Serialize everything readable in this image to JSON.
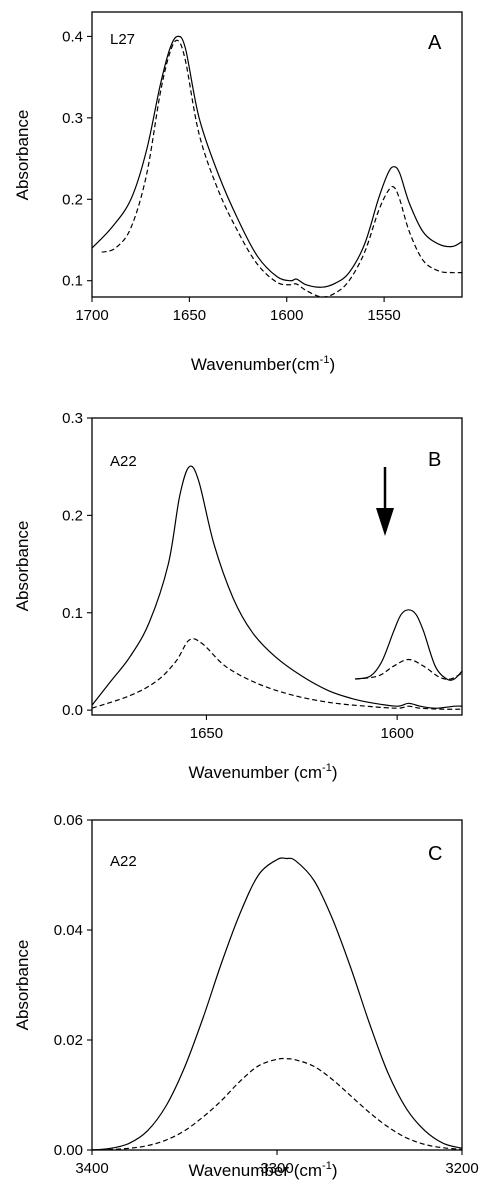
{
  "chart_data": [
    {
      "type": "line",
      "panel_letter": "A",
      "sample_label": "L27",
      "xlabel": "Wavenumber(cm",
      "xlabel_sup": "-1",
      "xlabel_close": ")",
      "ylabel": "Absorbance",
      "xlim": [
        1700,
        1510
      ],
      "ylim": [
        0.08,
        0.43
      ],
      "xticks": [
        1700,
        1650,
        1600,
        1550
      ],
      "yticks": [
        0.1,
        0.2,
        0.3,
        0.4
      ],
      "xticklabels": [
        "1700",
        "1650",
        "1600",
        "1550"
      ],
      "yticklabels": [
        "0.1",
        "0.2",
        "0.3",
        "0.4"
      ],
      "series": [
        {
          "style": "solid",
          "x": [
            1700,
            1690,
            1680,
            1672,
            1665,
            1660,
            1656,
            1652,
            1645,
            1635,
            1625,
            1615,
            1605,
            1598,
            1595,
            1590,
            1582,
            1575,
            1568,
            1560,
            1553,
            1548,
            1545,
            1542,
            1537,
            1530,
            1522,
            1515,
            1510
          ],
          "y": [
            0.14,
            0.165,
            0.2,
            0.26,
            0.34,
            0.385,
            0.4,
            0.385,
            0.3,
            0.23,
            0.175,
            0.13,
            0.105,
            0.1,
            0.102,
            0.095,
            0.092,
            0.097,
            0.11,
            0.145,
            0.2,
            0.232,
            0.24,
            0.232,
            0.195,
            0.16,
            0.145,
            0.142,
            0.148
          ]
        },
        {
          "style": "dashed",
          "x": [
            1695,
            1688,
            1680,
            1672,
            1665,
            1660,
            1656,
            1652,
            1645,
            1635,
            1625,
            1615,
            1605,
            1598,
            1595,
            1590,
            1582,
            1575,
            1568,
            1560,
            1553,
            1548,
            1545,
            1542,
            1537,
            1530,
            1522,
            1515,
            1510
          ],
          "y": [
            0.135,
            0.14,
            0.165,
            0.23,
            0.33,
            0.38,
            0.395,
            0.37,
            0.28,
            0.21,
            0.16,
            0.12,
            0.098,
            0.095,
            0.096,
            0.088,
            0.08,
            0.085,
            0.1,
            0.135,
            0.185,
            0.21,
            0.215,
            0.2,
            0.16,
            0.125,
            0.112,
            0.11,
            0.11
          ]
        }
      ]
    },
    {
      "type": "line",
      "panel_letter": "B",
      "sample_label": "A22",
      "xlabel": "Wavenumber (cm",
      "xlabel_sup": "-1",
      "xlabel_close": ")",
      "ylabel": "Absorbance",
      "xlim": [
        1680,
        1583
      ],
      "ylim": [
        -0.005,
        0.3
      ],
      "xticks": [
        1650,
        1600
      ],
      "yticks": [
        0.0,
        0.1,
        0.2,
        0.3
      ],
      "xticklabels": [
        "1650",
        "1600"
      ],
      "yticklabels": [
        "0.0",
        "0.1",
        "0.2",
        "0.3"
      ],
      "annotation": "downward arrow marking the band near 1597",
      "series": [
        {
          "style": "solid",
          "x": [
            1680,
            1675,
            1670,
            1665,
            1660,
            1657,
            1654.5,
            1652,
            1648,
            1643,
            1638,
            1632,
            1625,
            1618,
            1612,
            1606,
            1600,
            1597,
            1594,
            1590,
            1585,
            1583
          ],
          "y": [
            0.005,
            0.03,
            0.055,
            0.09,
            0.15,
            0.22,
            0.25,
            0.235,
            0.17,
            0.115,
            0.08,
            0.055,
            0.035,
            0.02,
            0.012,
            0.007,
            0.004,
            0.007,
            0.004,
            0.002,
            0.004,
            0.004
          ]
        },
        {
          "style": "dashed",
          "x": [
            1680,
            1670,
            1663,
            1658,
            1654.5,
            1651,
            1645,
            1637,
            1628,
            1618,
            1608,
            1600,
            1597,
            1594,
            1588,
            1583
          ],
          "y": [
            0.002,
            0.015,
            0.03,
            0.05,
            0.072,
            0.068,
            0.045,
            0.028,
            0.016,
            0.008,
            0.004,
            0.002,
            0.004,
            0.002,
            0.001,
            0.001
          ]
        },
        {
          "style": "solid",
          "x": [
            1611,
            1607,
            1604,
            1601,
            1599,
            1597,
            1595,
            1593,
            1590,
            1587,
            1585,
            1583
          ],
          "y": [
            0.032,
            0.035,
            0.05,
            0.08,
            0.098,
            0.103,
            0.098,
            0.08,
            0.045,
            0.032,
            0.032,
            0.04
          ]
        },
        {
          "style": "dashed",
          "x": [
            1611,
            1605,
            1601,
            1597,
            1593,
            1589,
            1586,
            1583
          ],
          "y": [
            0.032,
            0.035,
            0.045,
            0.052,
            0.045,
            0.034,
            0.032,
            0.038
          ]
        }
      ]
    },
    {
      "type": "line",
      "panel_letter": "C",
      "sample_label": "A22",
      "xlabel": "Wavenumber (cm",
      "xlabel_sup": "-1",
      "xlabel_close": ")",
      "ylabel": "Absorbance",
      "xlim": [
        3400,
        3200
      ],
      "ylim": [
        0.0,
        0.06
      ],
      "xticks": [
        3400,
        3300,
        3200
      ],
      "yticks": [
        0.0,
        0.02,
        0.04,
        0.06
      ],
      "xticklabels": [
        "3400",
        "3300",
        "3200"
      ],
      "yticklabels": [
        "0.00",
        "0.02",
        "0.04",
        "0.06"
      ],
      "series": [
        {
          "style": "solid",
          "x": [
            3400,
            3390,
            3380,
            3370,
            3360,
            3350,
            3340,
            3330,
            3320,
            3310,
            3300,
            3295,
            3290,
            3280,
            3270,
            3260,
            3250,
            3240,
            3230,
            3220,
            3210,
            3200
          ],
          "y": [
            0.0,
            0.0003,
            0.0012,
            0.0035,
            0.008,
            0.015,
            0.024,
            0.034,
            0.043,
            0.05,
            0.0528,
            0.053,
            0.0526,
            0.049,
            0.042,
            0.033,
            0.023,
            0.014,
            0.0075,
            0.0035,
            0.0012,
            0.0003
          ]
        },
        {
          "style": "dashed",
          "x": [
            3400,
            3390,
            3380,
            3370,
            3360,
            3350,
            3340,
            3330,
            3320,
            3310,
            3300,
            3295,
            3290,
            3280,
            3270,
            3260,
            3250,
            3240,
            3230,
            3220,
            3210,
            3200
          ],
          "y": [
            0.0,
            0.0001,
            0.0003,
            0.0008,
            0.0018,
            0.0035,
            0.006,
            0.009,
            0.0125,
            0.0153,
            0.0165,
            0.0166,
            0.0164,
            0.0152,
            0.0128,
            0.0098,
            0.0068,
            0.0042,
            0.0022,
            0.001,
            0.0004,
            0.0001
          ]
        }
      ]
    }
  ]
}
